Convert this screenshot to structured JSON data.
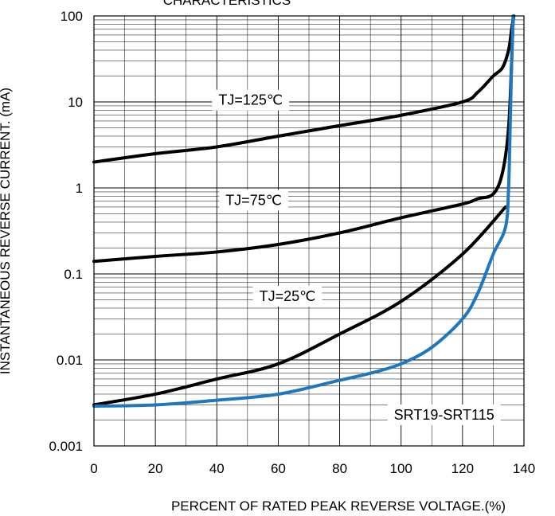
{
  "chart_data": {
    "type": "line",
    "title": "CHARACTERISTICS",
    "xlabel": "PERCENT OF RATED PEAK REVERSE VOLTAGE.(%)",
    "ylabel": "INSTANTANEOUS REVERSE CURRENT. (mA)",
    "xlim": [
      0,
      140
    ],
    "ylim": [
      0.001,
      100
    ],
    "y_scale": "log",
    "grid": true,
    "x_ticks": [
      {
        "value": 0,
        "label": "0"
      },
      {
        "value": 20,
        "label": "20"
      },
      {
        "value": 40,
        "label": "40"
      },
      {
        "value": 60,
        "label": "60"
      },
      {
        "value": 80,
        "label": "80"
      },
      {
        "value": 100,
        "label": "100"
      },
      {
        "value": 120,
        "label": "120"
      },
      {
        "value": 140,
        "label": "140"
      }
    ],
    "y_ticks": [
      {
        "value": 0.001,
        "label": "0.001"
      },
      {
        "value": 0.01,
        "label": "0.01"
      },
      {
        "value": 0.1,
        "label": "0.1"
      },
      {
        "value": 1,
        "label": "1"
      },
      {
        "value": 10,
        "label": "10"
      },
      {
        "value": 100,
        "label": "100"
      }
    ],
    "series": [
      {
        "name": "TJ=125℃",
        "color": "#000000",
        "points": [
          [
            0,
            2.0
          ],
          [
            20,
            2.5
          ],
          [
            40,
            3.0
          ],
          [
            60,
            4.0
          ],
          [
            80,
            5.3
          ],
          [
            100,
            7.0
          ],
          [
            120,
            10.0
          ],
          [
            125,
            13.0
          ],
          [
            130,
            20.0
          ],
          [
            133,
            25.0
          ],
          [
            135,
            40.0
          ],
          [
            136,
            70.0
          ],
          [
            136.7,
            100.0
          ]
        ]
      },
      {
        "name": "TJ=75℃",
        "color": "#000000",
        "points": [
          [
            0,
            0.14
          ],
          [
            20,
            0.16
          ],
          [
            40,
            0.18
          ],
          [
            60,
            0.22
          ],
          [
            80,
            0.3
          ],
          [
            100,
            0.45
          ],
          [
            120,
            0.65
          ],
          [
            125,
            0.75
          ],
          [
            130,
            0.85
          ],
          [
            133,
            1.5
          ],
          [
            135,
            5.0
          ],
          [
            136,
            30.0
          ],
          [
            136.5,
            100.0
          ]
        ]
      },
      {
        "name": "TJ=25℃",
        "color": "#000000",
        "points": [
          [
            0,
            0.003
          ],
          [
            20,
            0.004
          ],
          [
            40,
            0.006
          ],
          [
            60,
            0.009
          ],
          [
            80,
            0.02
          ],
          [
            100,
            0.048
          ],
          [
            120,
            0.17
          ],
          [
            134,
            0.6
          ]
        ]
      },
      {
        "name": "SRT19-SRT115",
        "color": "#1f77c0",
        "points": [
          [
            0,
            0.0029
          ],
          [
            20,
            0.003
          ],
          [
            40,
            0.0034
          ],
          [
            60,
            0.004
          ],
          [
            80,
            0.0058
          ],
          [
            90,
            0.007
          ],
          [
            100,
            0.009
          ],
          [
            110,
            0.014
          ],
          [
            120,
            0.03
          ],
          [
            125,
            0.06
          ],
          [
            130,
            0.17
          ],
          [
            134,
            0.35
          ],
          [
            135,
            1.0
          ],
          [
            135.5,
            5.0
          ],
          [
            136,
            30.0
          ],
          [
            136.5,
            100.0
          ]
        ]
      }
    ],
    "annotations": [
      {
        "text": "TJ=125℃",
        "x": 51,
        "y": 10.5
      },
      {
        "text": "TJ=75℃",
        "x": 52,
        "y": 0.72
      },
      {
        "text": "TJ=25℃",
        "x": 63,
        "y": 0.055
      },
      {
        "text": "SRT19-SRT115",
        "x": 114,
        "y": 0.0023
      }
    ]
  }
}
